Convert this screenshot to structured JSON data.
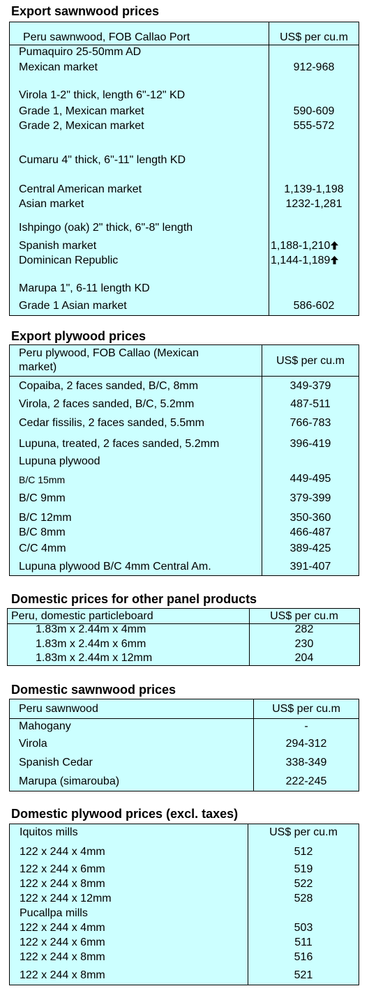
{
  "export_sawnwood": {
    "heading": "Export sawnwood prices",
    "header_desc": "Peru sawnwood, FOB Callao Port",
    "header_unit": "US$ per cu.m",
    "rows": [
      {
        "text": "Pumaquiro 25-50mm AD",
        "price": ""
      },
      {
        "text": "Mexican market",
        "price": "912-968"
      },
      {
        "text": "Virola  1-2\" thick, length  6\"-12\" KD",
        "price": ""
      },
      {
        "text": "Grade 1, Mexican market",
        "price": "590-609"
      },
      {
        "text": "Grade 2, Mexican market",
        "price": "555-572"
      },
      {
        "text": "Cumaru 4\" thick, 6\"-11\" length KD",
        "price": ""
      },
      {
        "text": "Central American market",
        "price": "1,139-1,198"
      },
      {
        "text": "Asian market",
        "price": "1232-1,281"
      },
      {
        "text": "Ishpingo (oak) 2\" thick, 6\"-8\" length",
        "price": ""
      },
      {
        "text": "Spanish market",
        "price": "1,188-1,210",
        "trend": "up-arrow-icon"
      },
      {
        "text": "Dominican Republic",
        "price": "1,144-1,189",
        "trend": "up-arrow-icon"
      },
      {
        "text": "Marupa  1\", 6-11 length KD",
        "price": ""
      },
      {
        "text": "Grade 1 Asian market",
        "price": "586-602"
      }
    ]
  },
  "export_plywood": {
    "heading": "Export plywood prices",
    "header_desc_line1": "Peru plywood, FOB Callao (Mexican",
    "header_desc_line2": "market)",
    "header_unit": "US$ per cu.m",
    "rows": [
      {
        "text": "Copaiba, 2 faces sanded, B/C, 8mm",
        "price": "349-379"
      },
      {
        "text": "Virola, 2 faces sanded, B/C, 5.2mm",
        "price": "487-511"
      },
      {
        "text": "Cedar fissilis, 2 faces sanded, 5.5mm",
        "price": "766-783"
      },
      {
        "text": "Lupuna, treated, 2 faces sanded, 5.2mm",
        "price": "396-419"
      },
      {
        "text": "Lupuna plywood",
        "price": ""
      },
      {
        "text": "B/C 15mm",
        "price": "449-495"
      },
      {
        "text": "B/C 9mm",
        "price": "379-399"
      },
      {
        "text": "B/C 12mm",
        "price": "350-360"
      },
      {
        "text": "B/C 8mm",
        "price": "466-487"
      },
      {
        "text": "C/C 4mm",
        "price": "389-425"
      },
      {
        "text": "Lupuna plywood B/C 4mm Central Am.",
        "price": "391-407"
      }
    ]
  },
  "domestic_panels": {
    "heading": "Domestic prices for other panel products",
    "header_desc": "Peru, domestic particleboard",
    "header_unit": "US$ per cu.m",
    "rows": [
      {
        "text": "1.83m x 2.44m x 4mm",
        "price": "282"
      },
      {
        "text": "1.83m x 2.44m x 6mm",
        "price": "230"
      },
      {
        "text": "1.83m x 2.44m x 12mm",
        "price": "204"
      }
    ]
  },
  "domestic_sawnwood": {
    "heading": "Domestic sawnwood prices",
    "header_desc": "Peru sawnwood",
    "header_unit": "US$ per cu.m",
    "rows": [
      {
        "text": "Mahogany",
        "price": "-"
      },
      {
        "text": "Virola",
        "price": "294-312"
      },
      {
        "text": "Spanish Cedar",
        "price": "338-349"
      },
      {
        "text": "Marupa (simarouba)",
        "price": "222-245"
      }
    ]
  },
  "domestic_plywood": {
    "heading": "Domestic plywood prices (excl. taxes)",
    "header_desc": "Iquitos mills",
    "header_unit": "US$ per cu.m",
    "rows": [
      {
        "text": "122 x 244 x 4mm",
        "price": "512"
      },
      {
        "text": "122 x 244 x 6mm",
        "price": "519"
      },
      {
        "text": "122 x 244 x 8mm",
        "price": "522"
      },
      {
        "text": "122 x 244 x 12mm",
        "price": "528"
      },
      {
        "text": "Pucallpa mills",
        "price": ""
      },
      {
        "text": "122 x 244 x 4mm",
        "price": "503"
      },
      {
        "text": "122 x 244 x 6mm",
        "price": "511"
      },
      {
        "text": "122 x 244 x 8mm",
        "price": "516"
      },
      {
        "text": "122 x 244 x 8mm",
        "price": "521"
      }
    ]
  }
}
